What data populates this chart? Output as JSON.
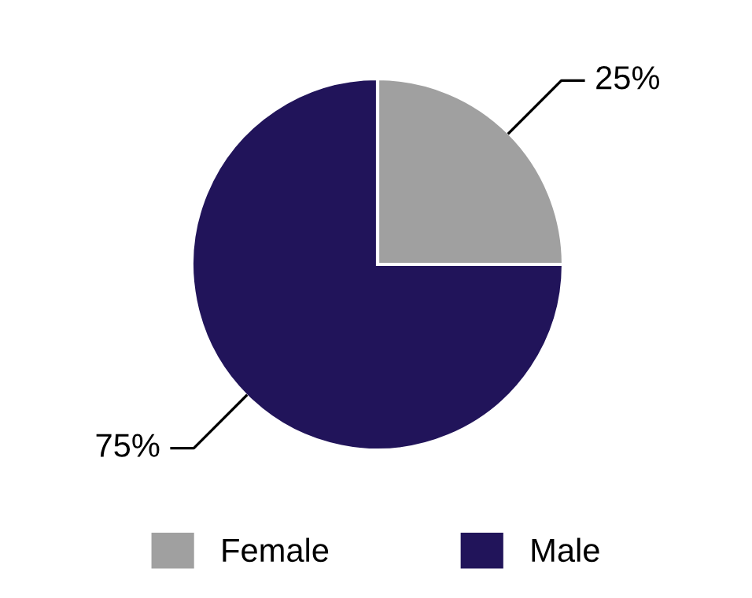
{
  "chart_data": {
    "type": "pie",
    "categories": [
      "Female",
      "Male"
    ],
    "values": [
      25,
      75
    ],
    "colors": [
      "#a0a0a0",
      "#21145a"
    ],
    "value_labels": [
      "25%",
      "75%"
    ],
    "legend": "bottom"
  }
}
